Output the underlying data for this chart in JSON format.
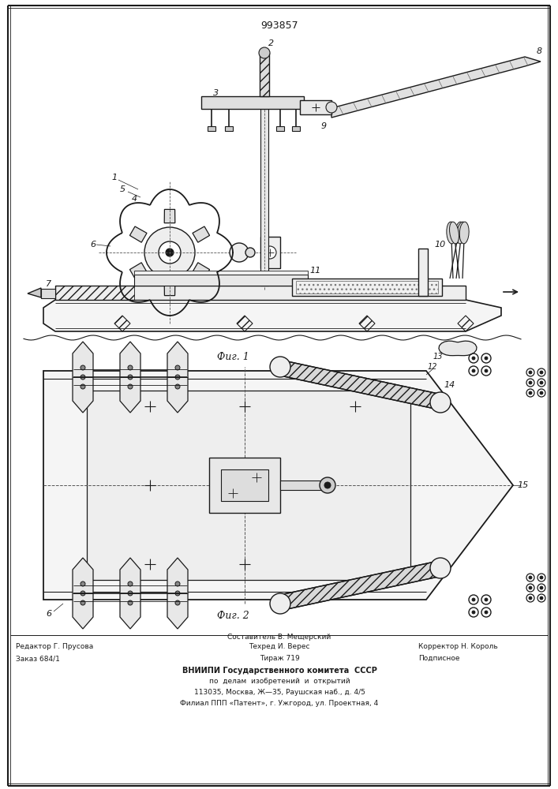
{
  "patent_number": "993857",
  "fig1_caption": "Фиг. 1",
  "fig2_caption": "Фиг. 2",
  "footer_left_line1": "Редактор Г. Прусова",
  "footer_left_line2": "Заказ 684/1",
  "footer_center_line1": "Составитель В. Мещерский",
  "footer_center_line2": "Техред И. Верес",
  "footer_center_line3": "Тираж 719",
  "footer_right_line1": "Корректор Н. Король",
  "footer_right_line2": "Подписное",
  "footer_vniipи_line1": "ВНИИПИ Государственного комитета  СССР",
  "footer_vniipи_line2": "по  делам  изобретений  и  открытий",
  "footer_vniipи_line3": "113035, Москва, Ж—35, Раушская наб., д. 4/5",
  "footer_vniipи_line4": "Филиал ППП «Патент», г. Ужгород, ул. Проектная, 4",
  "bg_color": "#ffffff",
  "line_color": "#1a1a1a",
  "text_color": "#1a1a1a"
}
